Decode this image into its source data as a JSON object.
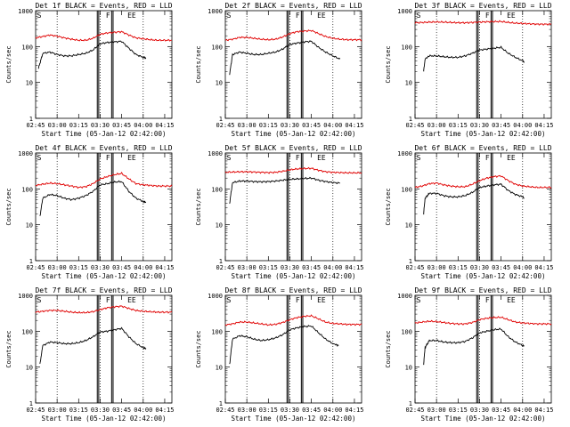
{
  "common": {
    "xlabel": "Start Time (05-Jan-12 02:42:00)",
    "ylabel": "Counts/sec",
    "xticks": [
      "02:45",
      "03:00",
      "03:15",
      "03:30",
      "03:45",
      "04:00",
      "04:15"
    ],
    "yticks": [
      "1",
      "10",
      "100",
      "1000"
    ],
    "marker_labels": [
      "S",
      "F",
      "E",
      "E"
    ],
    "series_colors": {
      "events": "#000000",
      "lld": "#e00000"
    }
  },
  "chart_data": [
    {
      "type": "line",
      "title": "Det 1f BLACK = Events, RED = LLD",
      "ylim": [
        1,
        1000
      ],
      "xlim": [
        "02:45",
        "04:20"
      ],
      "log_y": true,
      "series": [
        {
          "x": [
            "02:45",
            "02:50",
            "02:55",
            "03:00",
            "03:05",
            "03:10",
            "03:15",
            "03:20",
            "03:25",
            "03:30",
            "03:35",
            "03:40",
            "03:45",
            "03:50",
            "03:55",
            "04:00",
            "04:05",
            "04:10",
            "04:15",
            "04:20"
          ],
          "values": [
            175,
            190,
            210,
            195,
            175,
            160,
            150,
            150,
            170,
            220,
            240,
            250,
            260,
            210,
            175,
            165,
            155,
            150,
            150,
            150
          ]
        },
        {
          "x": [
            "02:47",
            "02:50",
            "02:55",
            "03:00",
            "03:05",
            "03:10",
            "03:15",
            "03:20",
            "03:25",
            "03:30",
            "03:35",
            "03:40",
            "03:45",
            "03:50",
            "03:55",
            "04:00",
            "04:02"
          ],
          "values": [
            25,
            65,
            70,
            60,
            55,
            55,
            60,
            65,
            80,
            120,
            130,
            135,
            140,
            90,
            60,
            50,
            48
          ]
        }
      ]
    },
    {
      "type": "line",
      "title": "Det 2f BLACK = Events, RED = LLD",
      "ylim": [
        1,
        1000
      ],
      "xlim": [
        "02:45",
        "04:20"
      ],
      "log_y": true,
      "series": [
        {
          "x": [
            "02:45",
            "02:50",
            "02:55",
            "03:00",
            "03:05",
            "03:10",
            "03:15",
            "03:20",
            "03:25",
            "03:30",
            "03:35",
            "03:40",
            "03:45",
            "03:50",
            "03:55",
            "04:00",
            "04:05",
            "04:10",
            "04:15",
            "04:20"
          ],
          "values": [
            150,
            160,
            180,
            180,
            170,
            160,
            155,
            160,
            185,
            230,
            260,
            270,
            280,
            230,
            190,
            170,
            160,
            155,
            155,
            155
          ]
        },
        {
          "x": [
            "02:48",
            "02:50",
            "02:55",
            "03:00",
            "03:05",
            "03:10",
            "03:15",
            "03:20",
            "03:25",
            "03:30",
            "03:35",
            "03:40",
            "03:45",
            "03:50",
            "03:55",
            "04:00",
            "04:05"
          ],
          "values": [
            17,
            60,
            70,
            65,
            60,
            60,
            65,
            70,
            85,
            115,
            125,
            135,
            140,
            95,
            70,
            55,
            45
          ]
        }
      ]
    },
    {
      "type": "line",
      "title": "Det 3f BLACK = Events, RED = LLD",
      "ylim": [
        1,
        1000
      ],
      "xlim": [
        "02:45",
        "04:20"
      ],
      "log_y": true,
      "series": [
        {
          "x": [
            "02:45",
            "02:50",
            "02:55",
            "03:00",
            "03:05",
            "03:10",
            "03:15",
            "03:20",
            "03:25",
            "03:30",
            "03:35",
            "03:40",
            "03:45",
            "03:50",
            "03:55",
            "04:00",
            "04:05",
            "04:10",
            "04:15",
            "04:20"
          ],
          "values": [
            460,
            470,
            480,
            485,
            480,
            470,
            460,
            460,
            470,
            480,
            490,
            495,
            500,
            470,
            450,
            440,
            430,
            420,
            420,
            420
          ]
        },
        {
          "x": [
            "02:51",
            "02:52",
            "02:55",
            "03:00",
            "03:05",
            "03:10",
            "03:15",
            "03:20",
            "03:25",
            "03:30",
            "03:35",
            "03:40",
            "03:45",
            "03:50",
            "03:55",
            "04:00",
            "04:01"
          ],
          "values": [
            20,
            45,
            55,
            55,
            52,
            50,
            50,
            55,
            65,
            80,
            85,
            90,
            95,
            65,
            50,
            40,
            38
          ]
        }
      ]
    },
    {
      "type": "line",
      "title": "Det 4f BLACK = Events, RED = LLD",
      "ylim": [
        1,
        1000
      ],
      "xlim": [
        "02:45",
        "04:20"
      ],
      "log_y": true,
      "series": [
        {
          "x": [
            "02:45",
            "02:50",
            "02:55",
            "03:00",
            "03:05",
            "03:10",
            "03:15",
            "03:20",
            "03:25",
            "03:30",
            "03:35",
            "03:40",
            "03:45",
            "03:50",
            "03:55",
            "04:00",
            "04:05",
            "04:10",
            "04:15",
            "04:20"
          ],
          "values": [
            125,
            135,
            145,
            140,
            130,
            120,
            110,
            115,
            140,
            190,
            220,
            250,
            270,
            190,
            140,
            130,
            125,
            120,
            120,
            120
          ]
        },
        {
          "x": [
            "02:48",
            "02:50",
            "02:55",
            "03:00",
            "03:05",
            "03:10",
            "03:15",
            "03:20",
            "03:25",
            "03:30",
            "03:35",
            "03:40",
            "03:45",
            "03:50",
            "03:55",
            "04:00",
            "04:02"
          ],
          "values": [
            17,
            55,
            70,
            65,
            55,
            50,
            55,
            65,
            85,
            130,
            140,
            155,
            160,
            85,
            55,
            45,
            42
          ]
        }
      ]
    },
    {
      "type": "line",
      "title": "Det 5f BLACK = Events, RED = LLD",
      "ylim": [
        1,
        1000
      ],
      "xlim": [
        "02:45",
        "04:20"
      ],
      "log_y": true,
      "series": [
        {
          "x": [
            "02:45",
            "02:50",
            "02:55",
            "03:00",
            "03:05",
            "03:10",
            "03:15",
            "03:20",
            "03:25",
            "03:30",
            "03:35",
            "03:40",
            "03:45",
            "03:50",
            "03:55",
            "04:00",
            "04:05",
            "04:10",
            "04:15",
            "04:20"
          ],
          "values": [
            290,
            295,
            300,
            300,
            295,
            290,
            285,
            290,
            310,
            340,
            360,
            370,
            375,
            330,
            300,
            290,
            285,
            280,
            280,
            280
          ]
        },
        {
          "x": [
            "02:48",
            "02:50",
            "02:55",
            "03:00",
            "03:05",
            "03:10",
            "03:15",
            "03:20",
            "03:25",
            "03:30",
            "03:35",
            "03:40",
            "03:45",
            "03:50",
            "03:55",
            "04:00",
            "04:05"
          ],
          "values": [
            40,
            150,
            165,
            165,
            160,
            158,
            160,
            165,
            175,
            185,
            190,
            195,
            200,
            175,
            160,
            150,
            145
          ]
        }
      ]
    },
    {
      "type": "line",
      "title": "Det 6f BLACK = Events, RED = LLD",
      "ylim": [
        1,
        1000
      ],
      "xlim": [
        "02:45",
        "04:20"
      ],
      "log_y": true,
      "series": [
        {
          "x": [
            "02:45",
            "02:50",
            "02:55",
            "03:00",
            "03:05",
            "03:10",
            "03:15",
            "03:20",
            "03:25",
            "03:30",
            "03:35",
            "03:40",
            "03:45",
            "03:50",
            "03:55",
            "04:00",
            "04:05",
            "04:10",
            "04:15",
            "04:20"
          ],
          "values": [
            110,
            120,
            140,
            145,
            130,
            120,
            115,
            115,
            135,
            170,
            200,
            220,
            230,
            170,
            135,
            120,
            115,
            110,
            110,
            110
          ]
        },
        {
          "x": [
            "02:51",
            "02:52",
            "02:55",
            "03:00",
            "03:05",
            "03:10",
            "03:15",
            "03:20",
            "03:25",
            "03:30",
            "03:35",
            "03:40",
            "03:45",
            "03:50",
            "03:55",
            "04:00",
            "04:01"
          ],
          "values": [
            20,
            55,
            75,
            75,
            65,
            60,
            60,
            65,
            80,
            110,
            120,
            130,
            135,
            90,
            70,
            60,
            55
          ]
        }
      ]
    },
    {
      "type": "line",
      "title": "Det 7f BLACK = Events, RED = LLD",
      "ylim": [
        1,
        1000
      ],
      "xlim": [
        "02:45",
        "04:20"
      ],
      "log_y": true,
      "series": [
        {
          "x": [
            "02:45",
            "02:50",
            "02:55",
            "03:00",
            "03:05",
            "03:10",
            "03:15",
            "03:20",
            "03:25",
            "03:30",
            "03:35",
            "03:40",
            "03:45",
            "03:50",
            "03:55",
            "04:00",
            "04:05",
            "04:10",
            "04:15",
            "04:20"
          ],
          "values": [
            340,
            360,
            380,
            380,
            360,
            340,
            330,
            330,
            350,
            400,
            450,
            480,
            500,
            430,
            380,
            360,
            350,
            340,
            340,
            340
          ]
        },
        {
          "x": [
            "02:48",
            "02:50",
            "02:55",
            "03:00",
            "03:05",
            "03:10",
            "03:15",
            "03:20",
            "03:25",
            "03:30",
            "03:35",
            "03:40",
            "03:45",
            "03:50",
            "03:55",
            "04:00",
            "04:02"
          ],
          "values": [
            12,
            40,
            50,
            48,
            45,
            45,
            48,
            55,
            70,
            95,
            100,
            110,
            120,
            70,
            45,
            35,
            32
          ]
        }
      ]
    },
    {
      "type": "line",
      "title": "Det 8f BLACK = Events, RED = LLD",
      "ylim": [
        1,
        1000
      ],
      "xlim": [
        "02:45",
        "04:20"
      ],
      "log_y": true,
      "series": [
        {
          "x": [
            "02:45",
            "02:50",
            "02:55",
            "03:00",
            "03:05",
            "03:10",
            "03:15",
            "03:20",
            "03:25",
            "03:30",
            "03:35",
            "03:40",
            "03:45",
            "03:50",
            "03:55",
            "04:00",
            "04:05",
            "04:10",
            "04:15",
            "04:20"
          ],
          "values": [
            150,
            160,
            180,
            180,
            170,
            160,
            150,
            155,
            175,
            210,
            240,
            260,
            270,
            220,
            180,
            165,
            160,
            155,
            155,
            155
          ]
        },
        {
          "x": [
            "02:48",
            "02:50",
            "02:55",
            "03:00",
            "03:05",
            "03:10",
            "03:15",
            "03:20",
            "03:25",
            "03:30",
            "03:35",
            "03:40",
            "03:45",
            "03:50",
            "03:55",
            "04:00",
            "04:04"
          ],
          "values": [
            12,
            60,
            75,
            70,
            60,
            55,
            58,
            65,
            80,
            110,
            125,
            135,
            140,
            90,
            60,
            45,
            40
          ]
        }
      ]
    },
    {
      "type": "line",
      "title": "Det 9f BLACK = Events, RED = LLD",
      "ylim": [
        1,
        1000
      ],
      "xlim": [
        "02:45",
        "04:20"
      ],
      "log_y": true,
      "series": [
        {
          "x": [
            "02:45",
            "02:50",
            "02:55",
            "03:00",
            "03:05",
            "03:10",
            "03:15",
            "03:20",
            "03:25",
            "03:30",
            "03:35",
            "03:40",
            "03:45",
            "03:50",
            "03:55",
            "04:00",
            "04:05",
            "04:10",
            "04:15",
            "04:20"
          ],
          "values": [
            170,
            180,
            190,
            185,
            175,
            165,
            160,
            160,
            175,
            210,
            230,
            240,
            245,
            210,
            180,
            170,
            165,
            160,
            160,
            160
          ]
        },
        {
          "x": [
            "02:51",
            "02:52",
            "02:55",
            "03:00",
            "03:05",
            "03:10",
            "03:15",
            "03:20",
            "03:25",
            "03:30",
            "03:35",
            "03:40",
            "03:45",
            "03:50",
            "03:55",
            "04:00",
            "04:01"
          ],
          "values": [
            12,
            35,
            55,
            55,
            50,
            48,
            48,
            52,
            65,
            90,
            100,
            110,
            115,
            70,
            50,
            40,
            38
          ]
        }
      ]
    }
  ]
}
